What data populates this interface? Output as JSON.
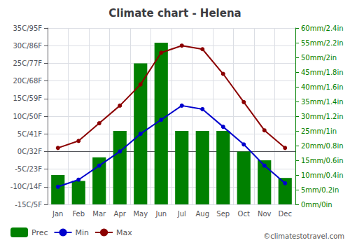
{
  "chart_data": {
    "type": "bar",
    "title": "Climate chart - Helena",
    "categories": [
      "Jan",
      "Feb",
      "Mar",
      "Apr",
      "May",
      "Jun",
      "Jul",
      "Aug",
      "Sep",
      "Oct",
      "Nov",
      "Dec"
    ],
    "series": [
      {
        "name": "Prec",
        "type": "bar",
        "axis": "y2",
        "color": "#008000",
        "values": [
          10,
          8,
          16,
          25,
          48,
          55,
          25,
          25,
          25,
          18,
          15,
          9
        ]
      },
      {
        "name": "Min",
        "type": "line",
        "color": "#0000CD",
        "marker": "circle",
        "values": [
          -10,
          -8,
          -4,
          0,
          5,
          9,
          13,
          12,
          7,
          2,
          -4,
          -9
        ]
      },
      {
        "name": "Max",
        "type": "line",
        "color": "#8B0000",
        "marker": "circle",
        "values": [
          1,
          3,
          8,
          13,
          19,
          28,
          30,
          29,
          22,
          14,
          6,
          1
        ]
      }
    ],
    "ylim": [
      -15,
      35
    ],
    "yticks": [
      {
        "value": -15,
        "label": "-15C/5F"
      },
      {
        "value": -10,
        "label": "-10C/14F"
      },
      {
        "value": -5,
        "label": "-5C/23F"
      },
      {
        "value": 0,
        "label": "0C/32F"
      },
      {
        "value": 5,
        "label": "5C/41F"
      },
      {
        "value": 10,
        "label": "10C/50F"
      },
      {
        "value": 15,
        "label": "15C/59F"
      },
      {
        "value": 20,
        "label": "20C/68F"
      },
      {
        "value": 25,
        "label": "25C/77F"
      },
      {
        "value": 30,
        "label": "30C/86F"
      },
      {
        "value": 35,
        "label": "35C/95F"
      }
    ],
    "y2lim": [
      0,
      60
    ],
    "y2ticks": [
      {
        "value": 0,
        "label": "0mm/0in"
      },
      {
        "value": 5,
        "label": "5mm/0.2in"
      },
      {
        "value": 10,
        "label": "10mm/0.4in"
      },
      {
        "value": 15,
        "label": "15mm/0.6in"
      },
      {
        "value": 20,
        "label": "20mm/0.8in"
      },
      {
        "value": 25,
        "label": "25mm/1in"
      },
      {
        "value": 30,
        "label": "30mm/1.2in"
      },
      {
        "value": 35,
        "label": "35mm/1.4in"
      },
      {
        "value": 40,
        "label": "40mm/1.6in"
      },
      {
        "value": 45,
        "label": "45mm/1.8in"
      },
      {
        "value": 50,
        "label": "50mm/2in"
      },
      {
        "value": 55,
        "label": "55mm/2.2in"
      },
      {
        "value": 60,
        "label": "60mm/2.4in"
      }
    ],
    "grid": true,
    "legend": "bottom",
    "annotations": [
      "©climatestotravel.com"
    ]
  }
}
